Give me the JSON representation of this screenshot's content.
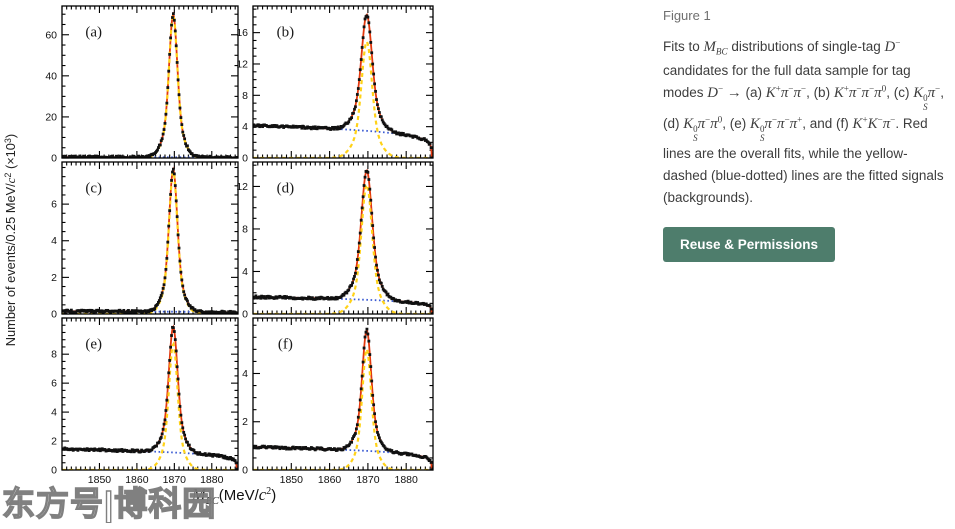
{
  "watermark": {
    "text": "东方号|博科园"
  },
  "figure_caption": {
    "heading": "Figure 1",
    "segments": [
      {
        "m": 0,
        "t": "Fits to "
      },
      {
        "m": 1,
        "t": "M_{BC}"
      },
      {
        "m": 0,
        "t": " distributions of single-tag "
      },
      {
        "m": 1,
        "t": "D^{−}"
      },
      {
        "m": 0,
        "t": " candidates for the full data sample for tag modes "
      },
      {
        "m": 1,
        "t": "D^{−} → "
      },
      {
        "m": 0,
        "t": "(a) "
      },
      {
        "m": 1,
        "t": "K^{+}π^{−}π^{−}"
      },
      {
        "m": 0,
        "t": ", (b) "
      },
      {
        "m": 1,
        "t": "K^{+}π^{−}π^{−}π^{0}"
      },
      {
        "m": 0,
        "t": ", (c) "
      },
      {
        "m": 1,
        "t": "K^{0}_{S}π^{−}"
      },
      {
        "m": 0,
        "t": ", (d) "
      },
      {
        "m": 1,
        "t": "K^{0}_{S}π^{−}π^{0}"
      },
      {
        "m": 0,
        "t": ", (e) "
      },
      {
        "m": 1,
        "t": "K^{0}_{S}π^{−}π^{−}π^{+}"
      },
      {
        "m": 0,
        "t": ", and (f) "
      },
      {
        "m": 1,
        "t": "K^{+}K^{−}π^{−}"
      },
      {
        "m": 0,
        "t": ". Red lines are the overall fits, while the yellow-dashed (blue-dotted) lines are the fitted signals (backgrounds)."
      }
    ],
    "button_label": "Reuse & Permissions",
    "button_color": "#4e7d6c"
  },
  "chart_data": {
    "type": "line",
    "layout": "3 rows x 2 columns of subpanels, shared x axis",
    "x_range": [
      1840,
      1887
    ],
    "x_ticks": [
      1850,
      1860,
      1870,
      1880
    ],
    "x_minor_step": 1.25,
    "xlabel_segments": [
      {
        "m": 1,
        "t": "M_{BC}"
      },
      {
        "m": 0,
        "t": "(MeV/"
      },
      {
        "m": 1,
        "t": "c^{2}"
      },
      {
        "m": 0,
        "t": ")"
      }
    ],
    "ylabel": "Number of events/0.25 MeV/*c*^{2}  (×10^{3})",
    "peak_mass": 1869.7,
    "endpoint": 1886.6,
    "colors": {
      "data": "#111111",
      "overall_fit": "#e2380e",
      "signal": "#ffd218",
      "background": "#3b5bd3",
      "axis": "#000000"
    },
    "panels": [
      {
        "label": "(a)",
        "tag_mode": "K+ pi- pi-",
        "ylim": [
          0,
          74
        ],
        "y_ticks": [
          0,
          20,
          40,
          60
        ],
        "y_minor_step": 5,
        "peak_height": 70,
        "background_level": 0.4,
        "sigma": 1.0
      },
      {
        "label": "(b)",
        "tag_mode": "K+ pi- pi- pi0",
        "ylim": [
          0,
          19.4
        ],
        "y_ticks": [
          0,
          4,
          8,
          12,
          16
        ],
        "y_minor_step": 1,
        "peak_height": 18.3,
        "background_level": 4.15,
        "sigma": 1.25
      },
      {
        "label": "(c)",
        "tag_mode": "KS0 pi-",
        "ylim": [
          0,
          8.3
        ],
        "y_ticks": [
          0,
          2,
          4,
          6
        ],
        "y_minor_step": 0.5,
        "peak_height": 7.9,
        "background_level": 0.15,
        "sigma": 1.0
      },
      {
        "label": "(d)",
        "tag_mode": "KS0 pi- pi0",
        "ylim": [
          0,
          14.3
        ],
        "y_ticks": [
          0,
          4,
          8,
          12
        ],
        "y_minor_step": 1,
        "peak_height": 13.5,
        "background_level": 1.6,
        "sigma": 1.25
      },
      {
        "label": "(e)",
        "tag_mode": "KS0 pi- pi- pi+",
        "ylim": [
          0,
          10.5
        ],
        "y_ticks": [
          0,
          2,
          4,
          6,
          8
        ],
        "y_minor_step": 0.5,
        "peak_height": 9.9,
        "background_level": 1.45,
        "sigma": 1.05
      },
      {
        "label": "(f)",
        "tag_mode": "K+ K- pi-",
        "ylim": [
          0,
          6.3
        ],
        "y_ticks": [
          0,
          2,
          4
        ],
        "y_minor_step": 0.5,
        "peak_height": 5.8,
        "background_level": 0.95,
        "sigma": 1.05
      }
    ]
  }
}
